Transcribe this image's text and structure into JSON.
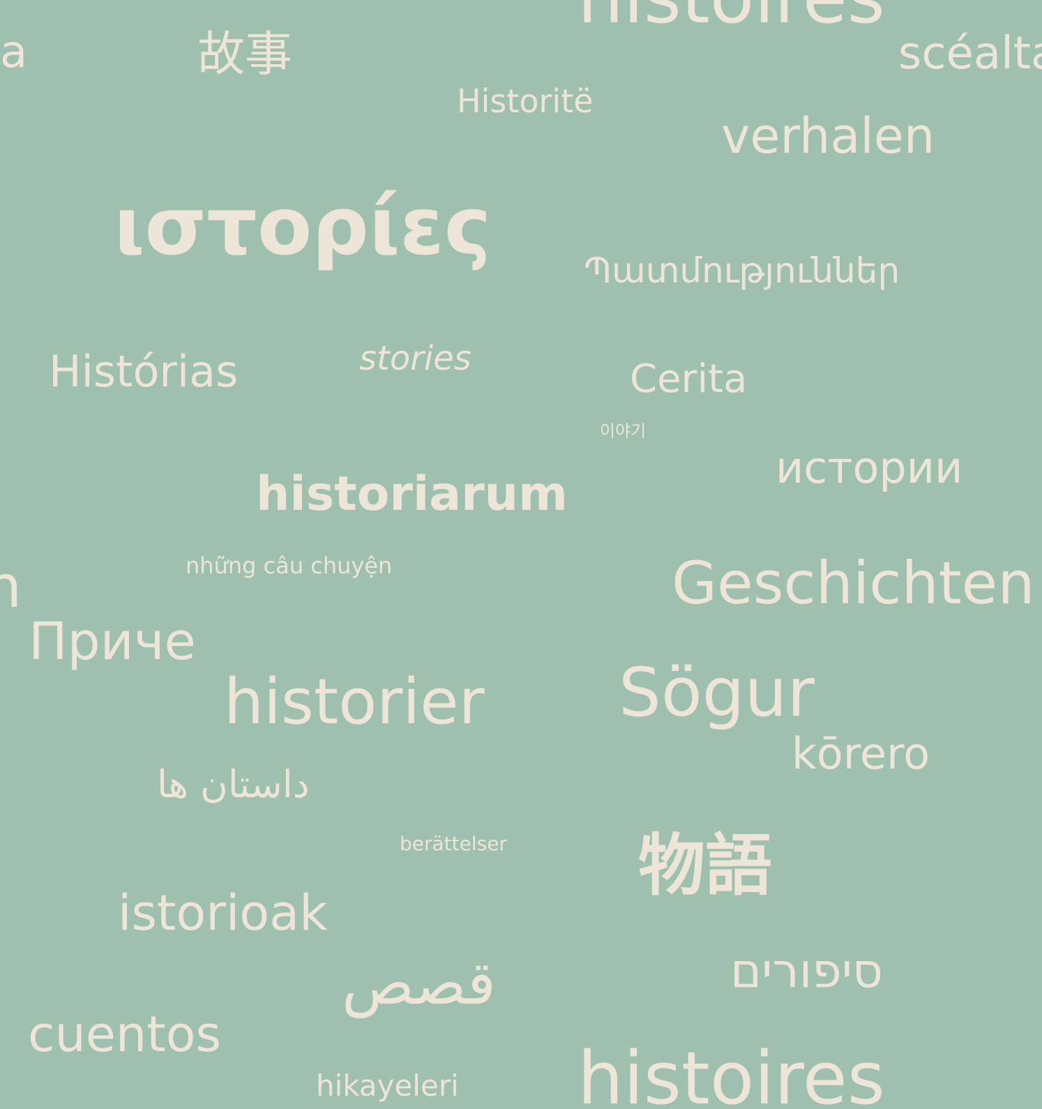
{
  "colors": {
    "background": "#9fbfaf",
    "text": "#ede5d8"
  },
  "words": {
    "histoires_top": "histoires",
    "fragment_a": "a",
    "gushi": "故事",
    "scealta": "scéalta",
    "historite": "Historitë",
    "verhalen": "verhalen",
    "istories": "ιστορίες",
    "patmutyunner": "Պատմություններ",
    "historias": "Histórias",
    "stories": "stories",
    "cerita": "Cerita",
    "iyagi": "이야기",
    "istorii": "истории",
    "historiarum": "historiarum",
    "nhung_cau_chuyen": "những câu chuyện",
    "fragment_n": "n",
    "geschichten": "Geschichten",
    "priche": "Приче",
    "historier": "historier",
    "sogur": "Sögur",
    "korero": "kōrero",
    "dastan_ha": "داستان ها",
    "berattelser": "berättelser",
    "monogatari": "物語",
    "istorioak": "istorioak",
    "qisas": "قصص",
    "sipurim": "סיפורים",
    "cuentos": "cuentos",
    "hikayeleri": "hikayeleri",
    "histoires_bottom": "histoires"
  }
}
